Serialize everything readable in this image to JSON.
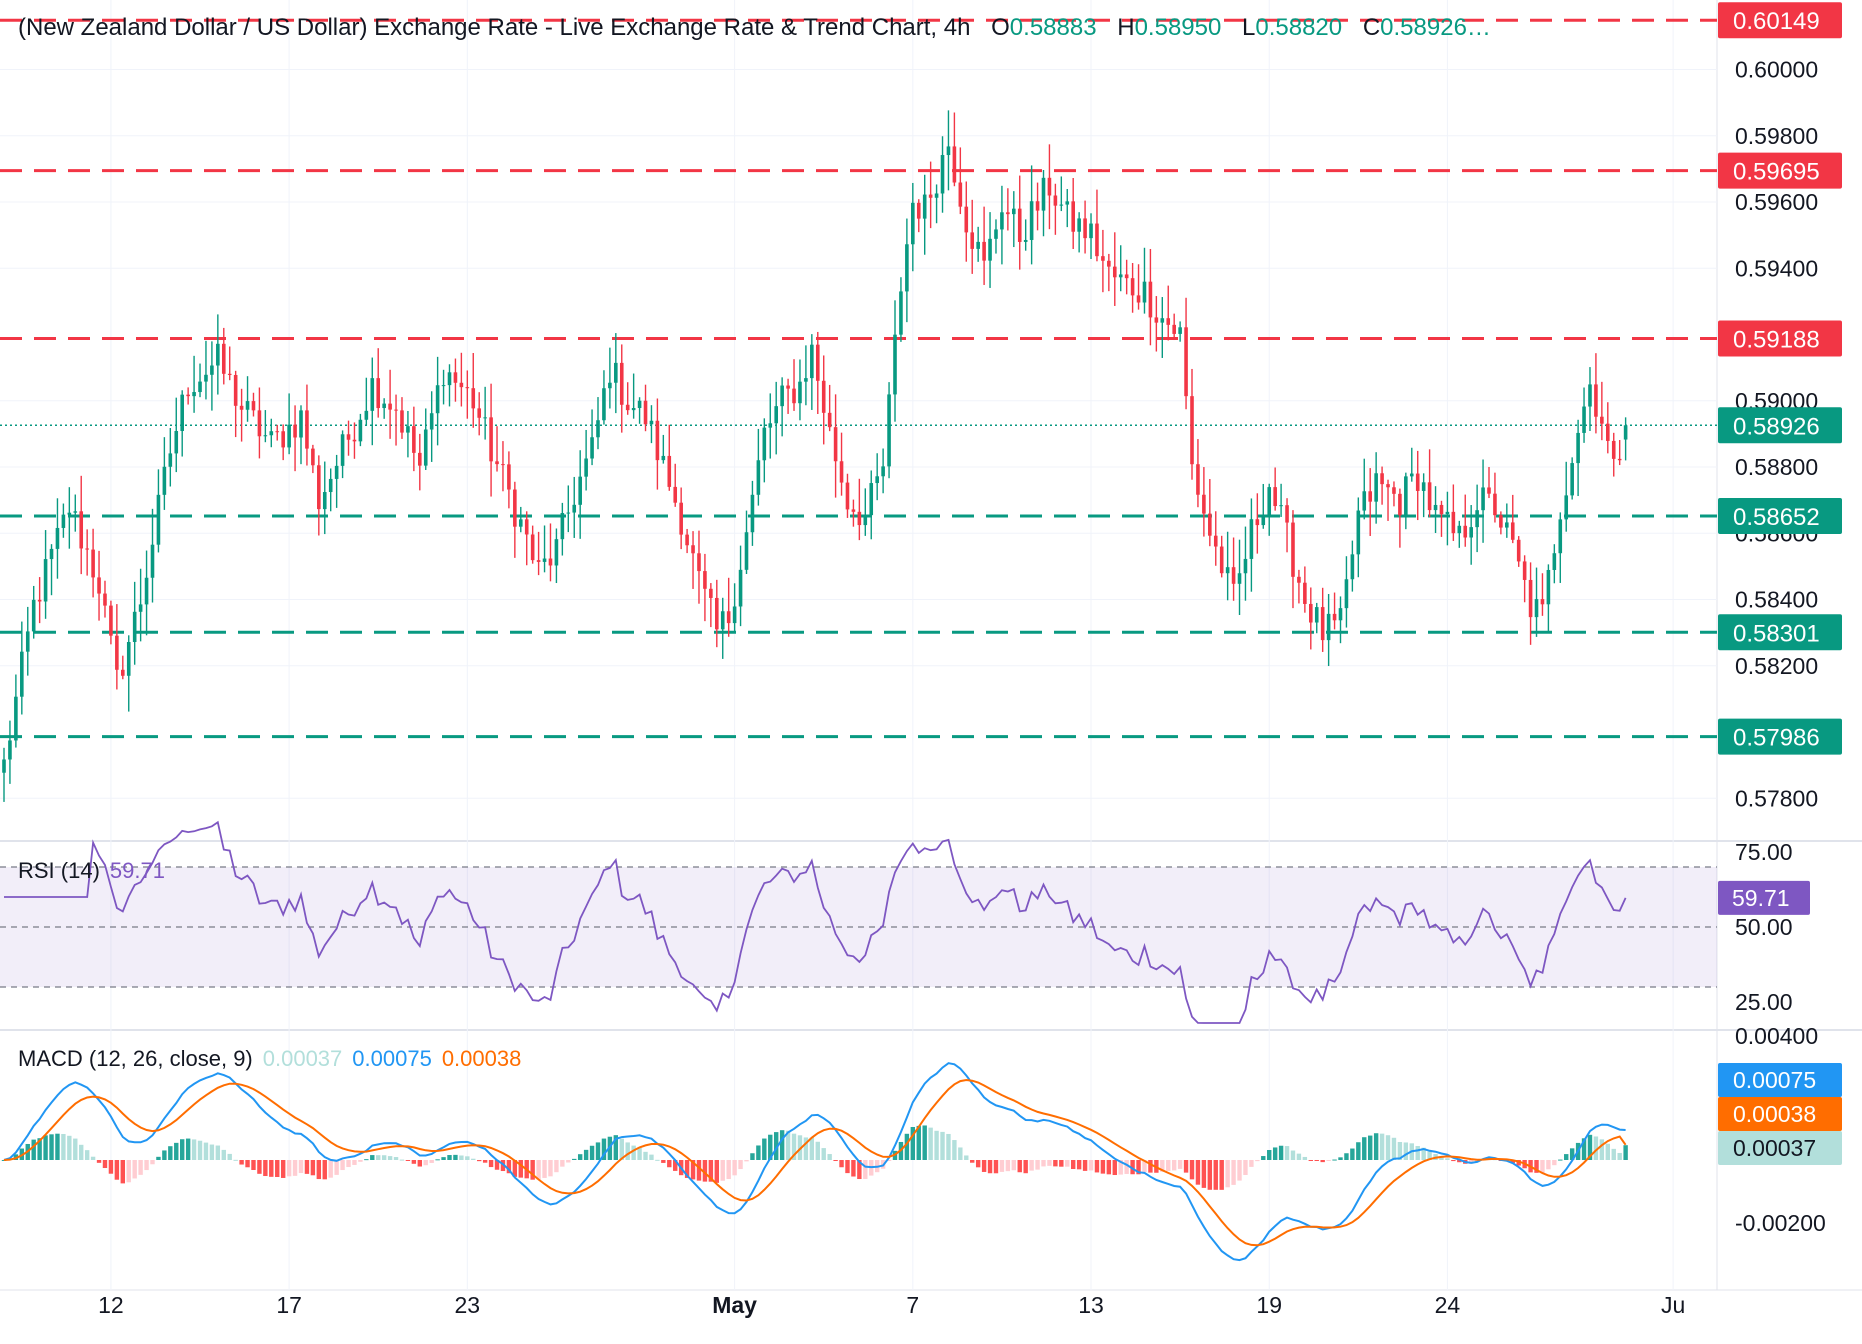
{
  "header": {
    "title": "(New Zealand Dollar / US Dollar) Exchange Rate - Live Exchange Rate & Trend Chart, 4h",
    "open_label": "O",
    "open": "0.58883",
    "high_label": "H",
    "high": "0.58950",
    "low_label": "L",
    "low": "0.58820",
    "close_label": "C",
    "close": "0.58926…"
  },
  "chart_data": {
    "type": "candlestick",
    "symbol": "NZD/USD",
    "timeframe": "4h",
    "price_axis": {
      "range": [
        0.5768,
        0.6021
      ],
      "ticks": [
        "0.60000",
        "0.59800",
        "0.59600",
        "0.59400",
        "0.59000",
        "0.58800",
        "0.58600",
        "0.58400",
        "0.58200",
        "0.57800"
      ]
    },
    "x_axis": {
      "ticks": [
        {
          "label": "12",
          "candle": 18
        },
        {
          "label": "17",
          "candle": 48
        },
        {
          "label": "23",
          "candle": 78
        },
        {
          "label": "May",
          "candle": 123
        },
        {
          "label": "7",
          "candle": 153
        },
        {
          "label": "13",
          "candle": 183
        },
        {
          "label": "19",
          "candle": 213
        },
        {
          "label": "24",
          "candle": 243
        },
        {
          "label": "Ju",
          "candle": 281
        }
      ],
      "bold": [
        "May"
      ]
    },
    "levels": [
      {
        "price": 0.60149,
        "label": "0.60149",
        "type": "resistance",
        "color": "#f23645"
      },
      {
        "price": 0.59695,
        "label": "0.59695",
        "type": "resistance",
        "color": "#f23645"
      },
      {
        "price": 0.59188,
        "label": "0.59188",
        "type": "resistance",
        "color": "#f23645"
      },
      {
        "price": 0.58652,
        "label": "0.58652",
        "type": "support",
        "color": "#089981"
      },
      {
        "price": 0.58301,
        "label": "0.58301",
        "type": "support",
        "color": "#089981"
      },
      {
        "price": 0.57986,
        "label": "0.57986",
        "type": "support",
        "color": "#089981"
      }
    ],
    "last_price": {
      "price": 0.58926,
      "label": "0.58926",
      "color": "#089981"
    },
    "path_anchors": [
      [
        0,
        0.579
      ],
      [
        5,
        0.5838
      ],
      [
        11,
        0.5868
      ],
      [
        16,
        0.5845
      ],
      [
        19,
        0.5815
      ],
      [
        23,
        0.584
      ],
      [
        28,
        0.5885
      ],
      [
        31,
        0.5905
      ],
      [
        36,
        0.5912
      ],
      [
        40,
        0.5898
      ],
      [
        45,
        0.5887
      ],
      [
        50,
        0.5895
      ],
      [
        53,
        0.587
      ],
      [
        57,
        0.5885
      ],
      [
        62,
        0.5905
      ],
      [
        66,
        0.5898
      ],
      [
        70,
        0.588
      ],
      [
        74,
        0.591
      ],
      [
        79,
        0.59
      ],
      [
        82,
        0.5885
      ],
      [
        85,
        0.5872
      ],
      [
        88,
        0.5858
      ],
      [
        90,
        0.5848
      ],
      [
        93,
        0.5855
      ],
      [
        96,
        0.5872
      ],
      [
        99,
        0.5885
      ],
      [
        102,
        0.591
      ],
      [
        105,
        0.59
      ],
      [
        108,
        0.5895
      ],
      [
        111,
        0.588
      ],
      [
        114,
        0.5865
      ],
      [
        117,
        0.5845
      ],
      [
        120,
        0.583
      ],
      [
        122,
        0.5835
      ],
      [
        125,
        0.586
      ],
      [
        128,
        0.589
      ],
      [
        131,
        0.59
      ],
      [
        134,
        0.5905
      ],
      [
        136,
        0.5915
      ],
      [
        139,
        0.589
      ],
      [
        142,
        0.587
      ],
      [
        145,
        0.5865
      ],
      [
        148,
        0.588
      ],
      [
        151,
        0.5935
      ],
      [
        153,
        0.596
      ],
      [
        155,
        0.5958
      ],
      [
        159,
        0.5978
      ],
      [
        162,
        0.5955
      ],
      [
        165,
        0.594
      ],
      [
        168,
        0.596
      ],
      [
        171,
        0.595
      ],
      [
        176,
        0.5965
      ],
      [
        179,
        0.5955
      ],
      [
        183,
        0.595
      ],
      [
        186,
        0.5938
      ],
      [
        189,
        0.5935
      ],
      [
        192,
        0.5933
      ],
      [
        195,
        0.5925
      ],
      [
        198,
        0.592
      ],
      [
        200,
        0.588
      ],
      [
        203,
        0.586
      ],
      [
        207,
        0.584
      ],
      [
        210,
        0.586
      ],
      [
        213,
        0.5875
      ],
      [
        216,
        0.5858
      ],
      [
        219,
        0.584
      ],
      [
        222,
        0.583
      ],
      [
        225,
        0.5832
      ],
      [
        228,
        0.5865
      ],
      [
        231,
        0.5875
      ],
      [
        235,
        0.587
      ],
      [
        238,
        0.5878
      ],
      [
        241,
        0.5865
      ],
      [
        245,
        0.5858
      ],
      [
        248,
        0.587
      ],
      [
        251,
        0.5868
      ],
      [
        254,
        0.5855
      ],
      [
        257,
        0.5838
      ],
      [
        259,
        0.5835
      ],
      [
        262,
        0.5868
      ],
      [
        265,
        0.5892
      ],
      [
        267,
        0.5905
      ],
      [
        269,
        0.5895
      ],
      [
        271,
        0.5878
      ],
      [
        273,
        0.5893
      ]
    ],
    "rsi": {
      "label": "RSI (14)",
      "value": "59.71",
      "ticks": [
        "75.00",
        "50.00",
        "25.00"
      ],
      "bands": {
        "upper": 70,
        "middle": 50,
        "lower": 30
      }
    },
    "macd": {
      "label": "MACD (12, 26, close, 9)",
      "histogram": "0.00037",
      "macd": "0.00075",
      "signal": "0.00038",
      "ticks": [
        "0.00400",
        "-0.00200"
      ],
      "colors": {
        "macd": "#2196f3",
        "signal": "#ff6d00",
        "hist_up": "#26a69a",
        "hist_up_light": "#b2dfdb",
        "hist_down": "#ff5252",
        "hist_down_light": "#ffcdd2"
      }
    }
  }
}
